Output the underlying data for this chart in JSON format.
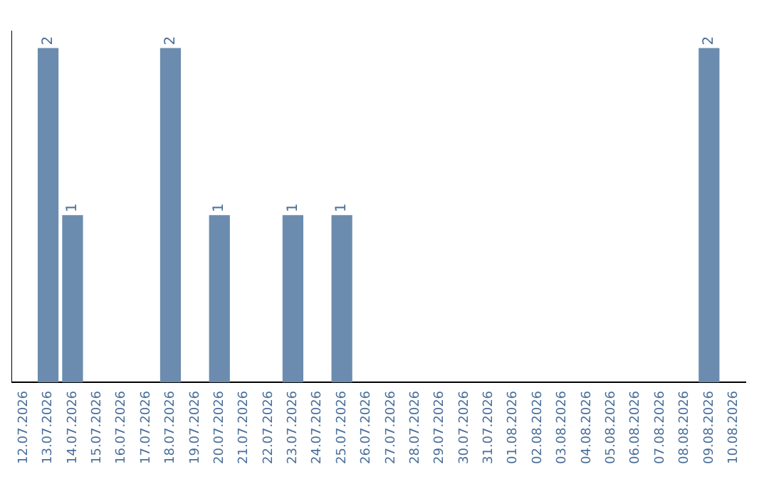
{
  "chart_data": {
    "type": "bar",
    "categories": [
      "12.07.2026",
      "13.07.2026",
      "14.07.2026",
      "15.07.2026",
      "16.07.2026",
      "17.07.2026",
      "18.07.2026",
      "19.07.2026",
      "20.07.2026",
      "21.07.2026",
      "22.07.2026",
      "23.07.2026",
      "24.07.2026",
      "25.07.2026",
      "26.07.2026",
      "27.07.2026",
      "28.07.2026",
      "29.07.2026",
      "30.07.2026",
      "31.07.2026",
      "01.08.2026",
      "02.08.2026",
      "03.08.2026",
      "04.08.2026",
      "05.08.2026",
      "06.08.2026",
      "07.08.2026",
      "08.08.2026",
      "09.08.2026",
      "10.08.2026"
    ],
    "values": [
      null,
      2,
      1,
      null,
      null,
      null,
      2,
      null,
      1,
      null,
      null,
      1,
      null,
      1,
      null,
      null,
      null,
      null,
      null,
      null,
      null,
      null,
      null,
      null,
      null,
      null,
      null,
      null,
      2,
      null
    ],
    "color": "#6b8cae",
    "ylim": [
      0,
      2.1
    ],
    "data_labels": true,
    "tick_labels": "x",
    "grid": false,
    "legend": false
  }
}
